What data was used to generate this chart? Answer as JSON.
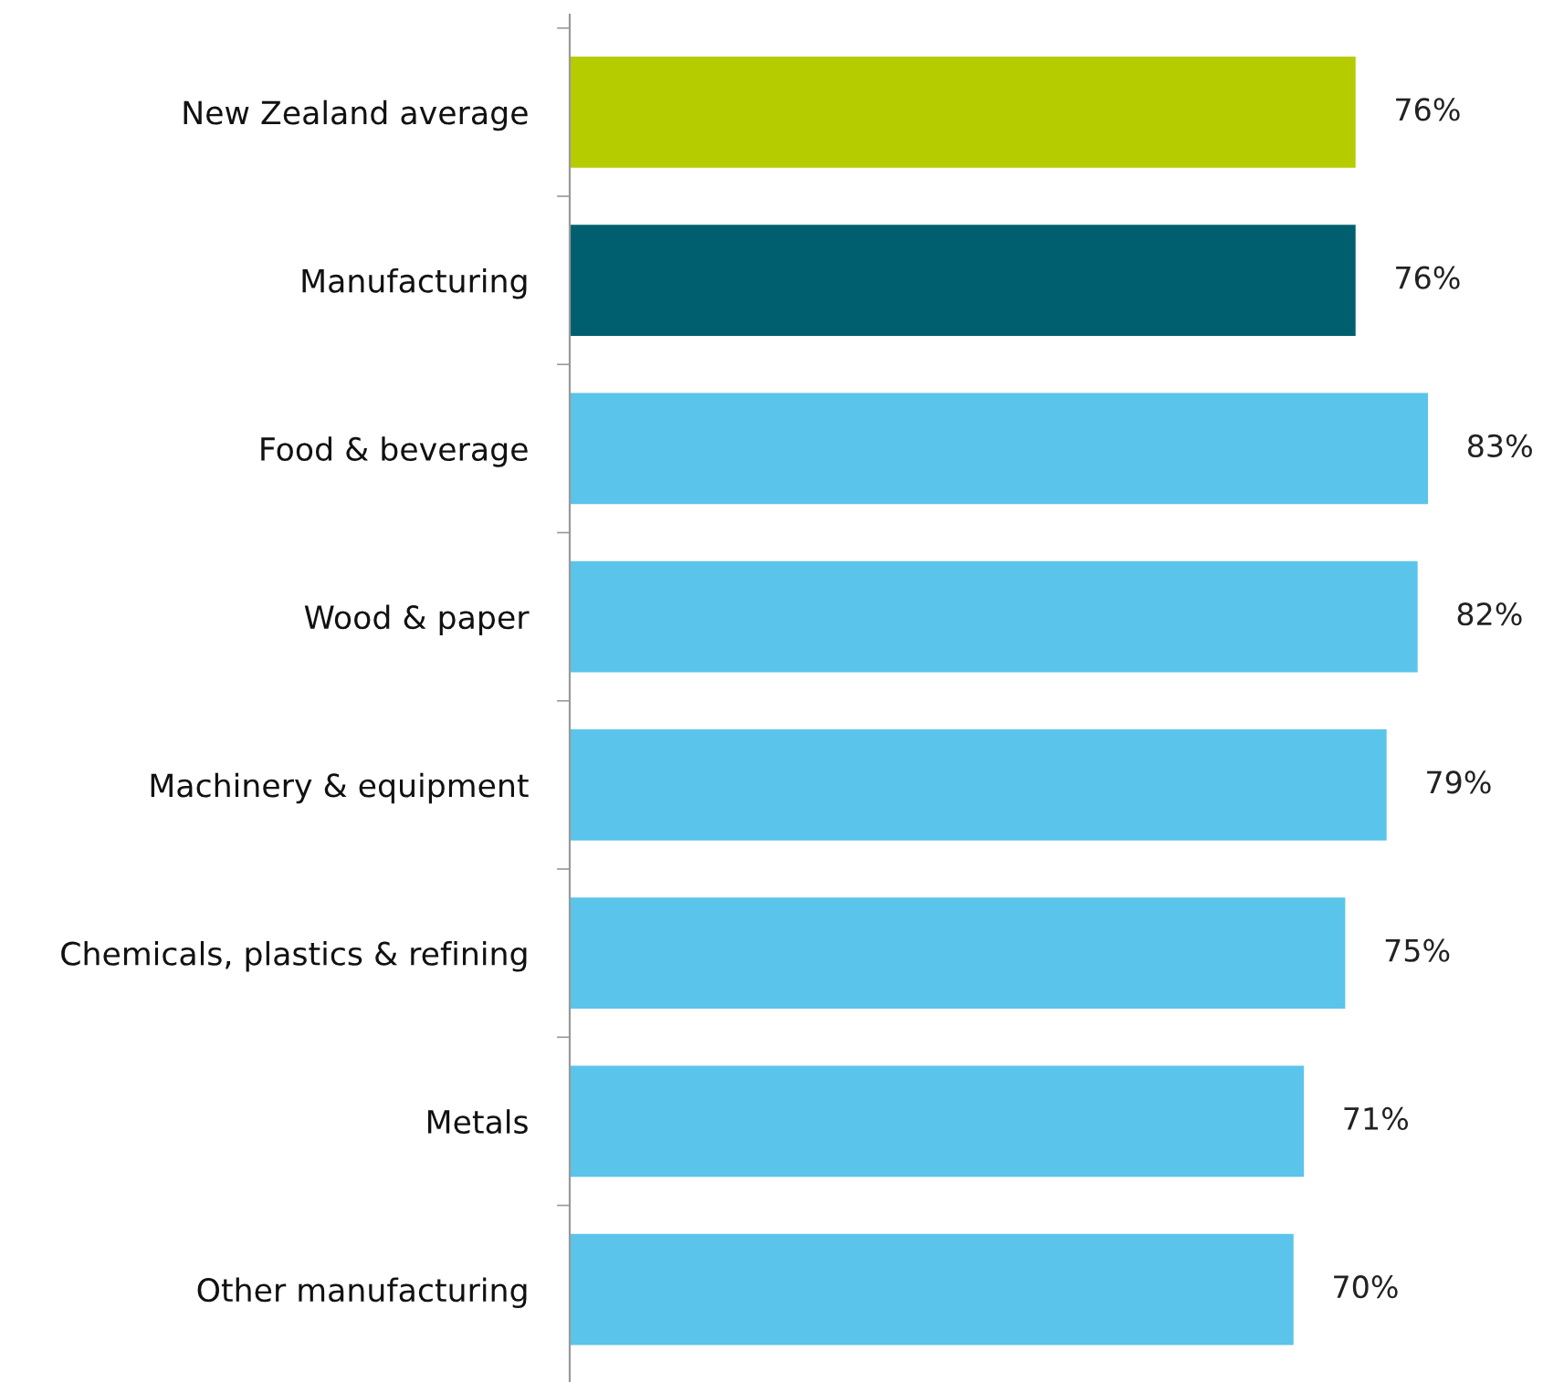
{
  "chart_data": {
    "type": "bar",
    "orientation": "horizontal",
    "categories": [
      "New Zealand average",
      "Manufacturing",
      "Food & beverage",
      "Wood & paper",
      "Machinery & equipment",
      "Chemicals, plastics & refining",
      "Metals",
      "Other manufacturing"
    ],
    "values": [
      76,
      76,
      83,
      82,
      79,
      75,
      71,
      70
    ],
    "colors": [
      "#b5cc00",
      "#005f6e",
      "#5bc4ea",
      "#5bc4ea",
      "#5bc4ea",
      "#5bc4ea",
      "#5bc4ea",
      "#5bc4ea"
    ],
    "value_labels": [
      "76%",
      "76%",
      "83%",
      "82%",
      "79%",
      "75%",
      "71%",
      "70%"
    ],
    "tick_labels": "y",
    "grid": false,
    "legend": false
  }
}
